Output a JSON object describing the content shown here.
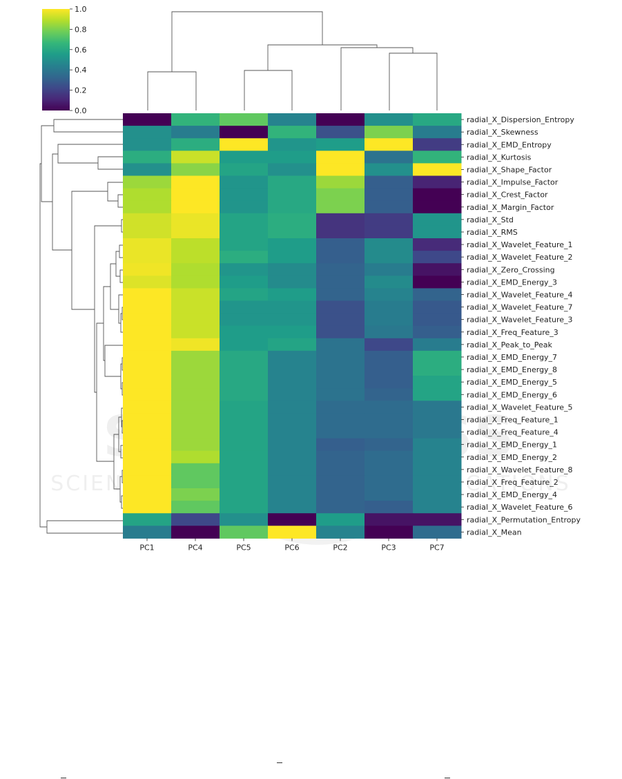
{
  "chart_data": {
    "type": "heatmap",
    "title": "",
    "xlabel": "",
    "ylabel": "",
    "columns": [
      "PC1",
      "PC4",
      "PC5",
      "PC6",
      "PC2",
      "PC3",
      "PC7"
    ],
    "rows": [
      "radial_X_Dispersion_Entropy",
      "radial_X_Skewness",
      "radial_X_EMD_Entropy",
      "radial_X_Kurtosis",
      "radial_X_Shape_Factor",
      "radial_X_Impulse_Factor",
      "radial_X_Crest_Factor",
      "radial_X_Margin_Factor",
      "radial_X_Std",
      "radial_X_RMS",
      "radial_X_Wavelet_Feature_1",
      "radial_X_Wavelet_Feature_2",
      "radial_X_Zero_Crossing",
      "radial_X_EMD_Energy_3",
      "radial_X_Wavelet_Feature_4",
      "radial_X_Wavelet_Feature_7",
      "radial_X_Wavelet_Feature_3",
      "radial_X_Freq_Feature_3",
      "radial_X_Peak_to_Peak",
      "radial_X_EMD_Energy_7",
      "radial_X_EMD_Energy_8",
      "radial_X_EMD_Energy_5",
      "radial_X_EMD_Energy_6",
      "radial_X_Wavelet_Feature_5",
      "radial_X_Freq_Feature_1",
      "radial_X_Freq_Feature_4",
      "radial_X_EMD_Energy_1",
      "radial_X_EMD_Energy_2",
      "radial_X_Wavelet_Feature_8",
      "radial_X_Freq_Feature_2",
      "radial_X_EMD_Energy_4",
      "radial_X_Wavelet_Feature_6",
      "radial_X_Permutation_Entropy",
      "radial_X_Mean"
    ],
    "values": [
      [
        0.0,
        0.65,
        0.75,
        0.45,
        0.0,
        0.5,
        0.6
      ],
      [
        0.5,
        0.42,
        0.0,
        0.65,
        0.25,
        0.8,
        0.42
      ],
      [
        0.5,
        0.62,
        1.0,
        0.52,
        0.55,
        1.0,
        0.18
      ],
      [
        0.62,
        0.92,
        0.55,
        0.55,
        1.0,
        0.38,
        0.65
      ],
      [
        0.5,
        0.82,
        0.58,
        0.5,
        1.0,
        0.5,
        1.0
      ],
      [
        0.85,
        1.0,
        0.52,
        0.6,
        0.85,
        0.3,
        0.1
      ],
      [
        0.88,
        1.0,
        0.52,
        0.6,
        0.8,
        0.3,
        0.0
      ],
      [
        0.88,
        1.0,
        0.52,
        0.6,
        0.8,
        0.3,
        0.0
      ],
      [
        0.93,
        0.97,
        0.58,
        0.62,
        0.15,
        0.18,
        0.52
      ],
      [
        0.93,
        0.97,
        0.58,
        0.62,
        0.15,
        0.18,
        0.52
      ],
      [
        0.97,
        0.9,
        0.58,
        0.55,
        0.3,
        0.48,
        0.12
      ],
      [
        0.97,
        0.9,
        0.62,
        0.55,
        0.3,
        0.48,
        0.22
      ],
      [
        0.98,
        0.88,
        0.52,
        0.48,
        0.32,
        0.42,
        0.05
      ],
      [
        0.95,
        0.88,
        0.55,
        0.48,
        0.32,
        0.48,
        0.0
      ],
      [
        1.0,
        0.92,
        0.58,
        0.55,
        0.32,
        0.45,
        0.32
      ],
      [
        1.0,
        0.92,
        0.52,
        0.52,
        0.25,
        0.42,
        0.28
      ],
      [
        1.0,
        0.92,
        0.52,
        0.52,
        0.25,
        0.42,
        0.28
      ],
      [
        1.0,
        0.92,
        0.55,
        0.55,
        0.25,
        0.4,
        0.3
      ],
      [
        1.0,
        0.98,
        0.55,
        0.58,
        0.38,
        0.22,
        0.42
      ],
      [
        1.0,
        0.85,
        0.6,
        0.45,
        0.38,
        0.3,
        0.62
      ],
      [
        1.0,
        0.85,
        0.6,
        0.45,
        0.38,
        0.3,
        0.62
      ],
      [
        1.0,
        0.85,
        0.6,
        0.45,
        0.38,
        0.3,
        0.58
      ],
      [
        1.0,
        0.85,
        0.6,
        0.45,
        0.38,
        0.32,
        0.58
      ],
      [
        1.0,
        0.85,
        0.58,
        0.45,
        0.35,
        0.35,
        0.4
      ],
      [
        1.0,
        0.85,
        0.58,
        0.45,
        0.35,
        0.35,
        0.4
      ],
      [
        1.0,
        0.85,
        0.58,
        0.45,
        0.35,
        0.35,
        0.4
      ],
      [
        1.0,
        0.85,
        0.58,
        0.45,
        0.3,
        0.32,
        0.45
      ],
      [
        1.0,
        0.88,
        0.58,
        0.45,
        0.32,
        0.35,
        0.45
      ],
      [
        1.0,
        0.75,
        0.58,
        0.45,
        0.32,
        0.35,
        0.45
      ],
      [
        1.0,
        0.75,
        0.58,
        0.45,
        0.32,
        0.35,
        0.45
      ],
      [
        1.0,
        0.8,
        0.58,
        0.45,
        0.32,
        0.35,
        0.45
      ],
      [
        1.0,
        0.75,
        0.58,
        0.45,
        0.32,
        0.3,
        0.45
      ],
      [
        0.58,
        0.22,
        0.5,
        0.0,
        0.55,
        0.05,
        0.05
      ],
      [
        0.42,
        0.0,
        0.75,
        1.0,
        0.45,
        0.0,
        0.35
      ]
    ],
    "colorbar": {
      "range": [
        0.0,
        1.0
      ],
      "ticks": [
        "0.0",
        "0.2",
        "0.4",
        "0.6",
        "0.8",
        "1.0"
      ],
      "colormap": "viridis",
      "colors": [
        "#440154",
        "#482878",
        "#3e4989",
        "#31688e",
        "#26828e",
        "#1f9e89",
        "#35b779",
        "#6ece58",
        "#b5de2b",
        "#fde725"
      ]
    },
    "dendrograms": [
      "rows",
      "columns"
    ],
    "grid": false,
    "legend": "colorbar top-left"
  },
  "watermark": {
    "line1": "SCITEPRESS",
    "line2": "SCIENCE AND TECHNOLOGY PUBLICATIONS"
  }
}
